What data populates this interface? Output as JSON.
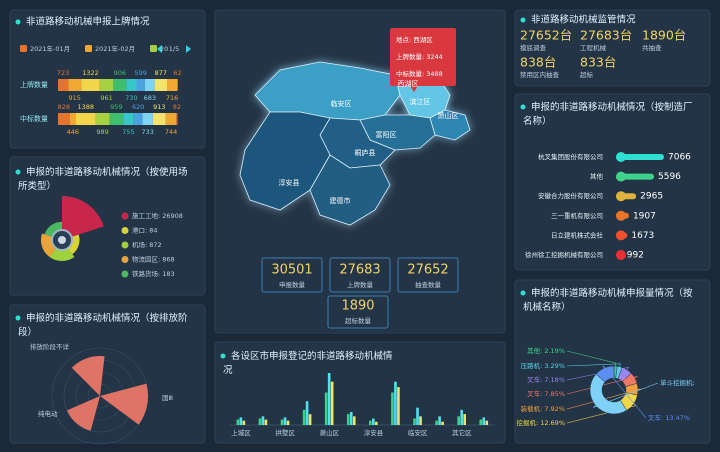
{
  "panels": {
    "plate": {
      "title": "非道路移动机械申报上牌情况",
      "legend": [
        "2021年-01月",
        "2021年-02月",
        "20"
      ],
      "legend_colors": [
        "#e8742b",
        "#f0a833",
        "#a9d13f"
      ],
      "page": "1/5",
      "colors": [
        "#e8742b",
        "#f0a833",
        "#f2d64a",
        "#a9d13f",
        "#3fbf6e",
        "#38c6c6",
        "#4aa3e0",
        "#7fd4f2",
        "#f2e36b",
        "#f0a833",
        "#e8742b"
      ],
      "rows": [
        {
          "name": "上牌数量",
          "values": [
            723,
            915,
            1322,
            961,
            906,
            730,
            599,
            683,
            877,
            716,
            62
          ]
        },
        {
          "name": "中标数量",
          "values": [
            828,
            446,
            1388,
            989,
            959,
            755,
            620,
            733,
            913,
            744,
            82
          ]
        }
      ]
    },
    "site": {
      "title": "申报的非道路移动机械情况（按使用场所类型）",
      "type": "pie",
      "values": [
        26908,
        84,
        872,
        868,
        183
      ],
      "value_labels": [
        "施工工地: 26908",
        "港口: 84",
        "机场: 872",
        "物流园区: 868",
        "铁路货场: 183"
      ],
      "colors": [
        "#c8264a",
        "#d9d33a",
        "#9fd23f",
        "#e8a33a",
        "#4cb860"
      ]
    },
    "emission": {
      "title": "申报的非道路移动机械情况（按排放阶段）",
      "type": "polar",
      "categories": [
        "排放阶段不详",
        "国Ⅲ",
        "纯电动"
      ],
      "values": [
        40,
        48,
        36
      ],
      "color": "#f07868"
    },
    "map": {
      "districts": [
        "临安区",
        "西湖区",
        "滨江区",
        "萧山区",
        "富阳区",
        "桐庐县",
        "淳安县",
        "建德市"
      ],
      "tooltip": {
        "title": "地点: 西湖区",
        "values": [
          3244,
          3488
        ],
        "value_labels": [
          "上牌数量: 3244",
          "中标数量: 3488"
        ]
      },
      "stats": {
        "values": [
          30501,
          27683,
          27652,
          1890
        ],
        "labels": [
          "申报数量",
          "上牌数量",
          "抽查数量",
          "超标数量"
        ]
      }
    },
    "district": {
      "title": "各设区市申报登记的非道路移动机械情况",
      "type": "bar",
      "categories": [
        "上城区",
        null,
        "拱墅区",
        null,
        "萧山区",
        null,
        "淳安县",
        null,
        "临安区",
        null,
        "其它区",
        null
      ],
      "series": [
        {
          "color": "#3fd28a",
          "values": [
            5,
            6,
            5,
            14,
            30,
            10,
            4,
            30,
            6,
            4,
            8,
            5
          ]
        },
        {
          "color": "#4de3f0",
          "values": [
            7,
            8,
            7,
            22,
            48,
            12,
            6,
            40,
            16,
            8,
            14,
            7
          ]
        },
        {
          "color": "#f2e36b",
          "values": [
            4,
            5,
            4,
            10,
            40,
            8,
            3,
            35,
            8,
            3,
            10,
            4
          ]
        }
      ]
    },
    "monitor": {
      "title": "非道路移动机械监管情况",
      "values": [
        27652,
        27683,
        1890,
        838,
        833
      ],
      "value_labels": [
        "27652台",
        "27683台",
        "1890台",
        "838台",
        "833台"
      ],
      "labels": [
        "摸底调查",
        "工程机械",
        "共抽查",
        "禁用区内抽查",
        "超标"
      ]
    },
    "maker": {
      "title": "申报的非道路移动机械情况（按制造厂名称）",
      "type": "bar",
      "categories": [
        "杭叉集团股份有限公司",
        "其他",
        "安徽合力股份有限公司",
        "三一重机有限公司",
        "日立建机株式会社",
        "徐州徐工挖掘机械有限公司"
      ],
      "values": [
        7066,
        5596,
        2965,
        1907,
        1673,
        992
      ],
      "colors": [
        "#2de0d0",
        "#3fd28a",
        "#e0b43a",
        "#e8742b",
        "#f0502b",
        "#e8303a"
      ]
    },
    "machine": {
      "title": "申报的非道路移动机械申报量情况（按机械名称）",
      "type": "donut",
      "values": [
        2.19,
        3.29,
        7.18,
        7.85,
        7.92,
        12.69,
        45.41,
        13.47
      ],
      "value_labels": [
        "其他: 2.19%",
        "压路机: 3.29%",
        "叉车: 7.18%",
        "叉车: 7.85%",
        "装载机: 7.92%",
        "挖掘机: 12.69%",
        "单斗挖掘机:",
        "叉车: 13.47%"
      ],
      "colors": [
        "#3fd28a",
        "#5ad1e6",
        "#9a86f0",
        "#f07868",
        "#f0a040",
        "#f2d64a",
        "#7ed0f8",
        "#5b8ff0"
      ]
    }
  }
}
